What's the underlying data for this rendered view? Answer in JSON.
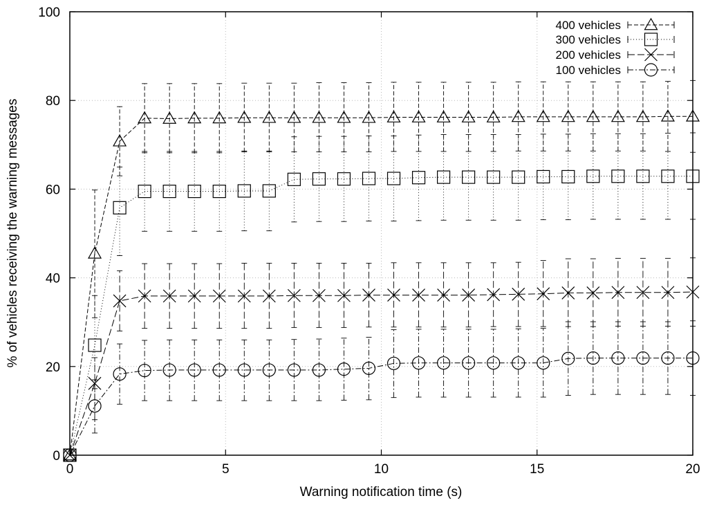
{
  "chart_data": {
    "type": "line",
    "title": "",
    "xlabel": "Warning notification time (s)",
    "ylabel": "% of vehicles receiving the warning messages",
    "xlim": [
      0,
      20
    ],
    "ylim": [
      0,
      100
    ],
    "xticks": [
      0,
      5,
      10,
      15,
      20
    ],
    "yticks": [
      0,
      20,
      40,
      60,
      80,
      100
    ],
    "grid": true,
    "legend_position": "top-right",
    "x": [
      0,
      0.8,
      1.6,
      2.4,
      3.2,
      4.0,
      4.8,
      5.6,
      6.4,
      7.2,
      8.0,
      8.8,
      9.6,
      10.4,
      11.2,
      12.0,
      12.8,
      13.6,
      14.4,
      15.2,
      16.0,
      16.8,
      17.6,
      18.4,
      19.2,
      20.0
    ],
    "series": [
      {
        "name": "400 vehicles",
        "marker": "triangle",
        "dash": "6 3",
        "values": [
          0,
          45.5,
          70.8,
          76.0,
          75.9,
          76.0,
          76.0,
          76.1,
          76.1,
          76.1,
          76.1,
          76.1,
          76.1,
          76.2,
          76.2,
          76.2,
          76.2,
          76.2,
          76.3,
          76.3,
          76.3,
          76.3,
          76.3,
          76.3,
          76.4,
          76.4
        ],
        "err_low": [
          0,
          31.0,
          63.0,
          68.2,
          68.2,
          68.2,
          68.2,
          68.4,
          68.4,
          68.4,
          68.4,
          68.4,
          68.4,
          68.5,
          68.5,
          68.5,
          68.5,
          68.5,
          68.6,
          68.6,
          68.6,
          68.6,
          68.6,
          68.6,
          68.5,
          68.3
        ],
        "err_high": [
          0,
          59.8,
          78.6,
          83.8,
          83.8,
          83.8,
          83.8,
          83.9,
          83.9,
          83.9,
          84.0,
          84.0,
          84.0,
          84.1,
          84.1,
          84.1,
          84.1,
          84.1,
          84.2,
          84.2,
          84.2,
          84.2,
          84.2,
          84.2,
          84.3,
          84.5
        ]
      },
      {
        "name": "300 vehicles",
        "marker": "square",
        "dash": "1 3",
        "values": [
          0,
          24.8,
          55.8,
          59.5,
          59.5,
          59.5,
          59.5,
          59.6,
          59.6,
          62.2,
          62.3,
          62.3,
          62.4,
          62.4,
          62.6,
          62.7,
          62.7,
          62.7,
          62.7,
          62.8,
          62.8,
          62.9,
          62.9,
          62.9,
          62.9,
          62.9
        ],
        "err_low": [
          0,
          15.0,
          45.0,
          50.5,
          50.5,
          50.5,
          50.5,
          50.6,
          50.6,
          52.6,
          52.7,
          52.7,
          52.8,
          52.8,
          52.9,
          53.0,
          53.0,
          53.0,
          53.0,
          53.1,
          53.1,
          53.2,
          53.2,
          53.2,
          53.2,
          53.2
        ],
        "err_high": [
          0,
          36.0,
          65.0,
          68.5,
          68.5,
          68.5,
          68.5,
          68.6,
          68.6,
          71.8,
          71.9,
          71.9,
          72.0,
          72.0,
          72.2,
          72.3,
          72.3,
          72.3,
          72.3,
          72.4,
          72.4,
          72.5,
          72.5,
          72.5,
          72.6,
          72.7
        ]
      },
      {
        "name": "200 vehicles",
        "marker": "cross",
        "dash": "10 4",
        "values": [
          0,
          16.2,
          34.8,
          35.9,
          35.9,
          35.9,
          35.9,
          35.9,
          35.9,
          36.0,
          36.0,
          36.0,
          36.1,
          36.1,
          36.1,
          36.1,
          36.1,
          36.2,
          36.3,
          36.4,
          36.6,
          36.6,
          36.7,
          36.7,
          36.7,
          36.8
        ],
        "err_low": [
          0,
          8.0,
          28.0,
          28.6,
          28.6,
          28.6,
          28.6,
          28.6,
          28.6,
          28.8,
          28.8,
          28.8,
          28.9,
          28.9,
          28.9,
          28.9,
          28.9,
          29.0,
          29.0,
          29.0,
          29.0,
          29.0,
          29.1,
          29.1,
          29.1,
          29.1
        ],
        "err_high": [
          0,
          22.0,
          41.6,
          43.2,
          43.2,
          43.2,
          43.2,
          43.3,
          43.3,
          43.3,
          43.3,
          43.3,
          43.3,
          43.4,
          43.4,
          43.4,
          43.4,
          43.4,
          43.5,
          43.9,
          44.3,
          44.3,
          44.4,
          44.4,
          44.4,
          44.5
        ]
      },
      {
        "name": "100 vehicles",
        "marker": "circle",
        "dash": "8 3 2 3",
        "values": [
          0,
          11.1,
          18.3,
          19.1,
          19.2,
          19.2,
          19.2,
          19.2,
          19.2,
          19.2,
          19.2,
          19.4,
          19.6,
          20.7,
          20.8,
          20.8,
          20.8,
          20.8,
          20.8,
          20.8,
          21.8,
          21.9,
          21.9,
          21.9,
          21.9,
          21.9
        ],
        "err_low": [
          0,
          5.0,
          11.5,
          12.3,
          12.3,
          12.3,
          12.3,
          12.3,
          12.3,
          12.3,
          12.3,
          12.4,
          12.5,
          13.0,
          13.1,
          13.1,
          13.1,
          13.1,
          13.1,
          13.1,
          13.5,
          13.7,
          13.7,
          13.7,
          13.7,
          13.5
        ],
        "err_high": [
          0,
          17.0,
          25.1,
          25.9,
          26.0,
          26.0,
          26.0,
          26.0,
          26.0,
          26.1,
          26.2,
          26.4,
          26.6,
          28.3,
          28.4,
          28.4,
          28.4,
          28.4,
          28.5,
          28.6,
          30.1,
          30.1,
          30.1,
          30.1,
          30.1,
          30.3
        ]
      }
    ]
  }
}
